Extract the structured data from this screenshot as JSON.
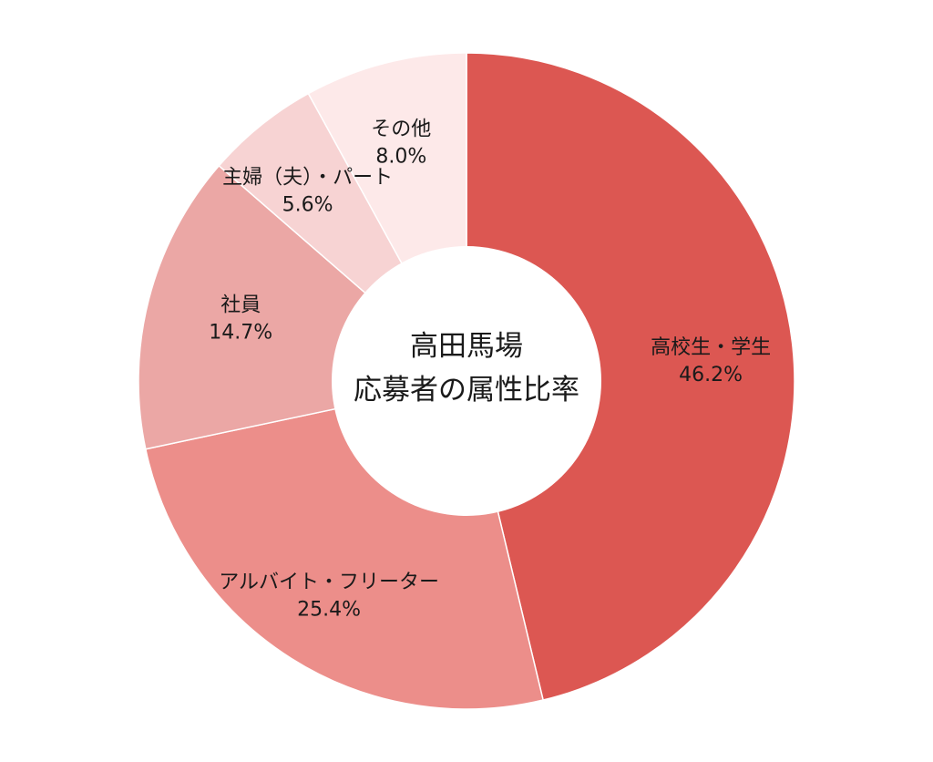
{
  "chart_data": {
    "type": "pie",
    "center_title": [
      "高田馬場",
      "応募者の属性比率"
    ],
    "slices": [
      {
        "label": "高校生・学生",
        "value": 46.2,
        "value_label": "46.2%",
        "color": "#dc5752"
      },
      {
        "label": "アルバイト・フリーター",
        "value": 25.4,
        "value_label": "25.4%",
        "color": "#ec8e8a"
      },
      {
        "label": "社員",
        "value": 14.7,
        "value_label": "14.7%",
        "color": "#eba7a5"
      },
      {
        "label": "主婦（夫）・パート",
        "value": 5.6,
        "value_label": "5.6%",
        "color": "#f7d3d3"
      },
      {
        "label": "その他",
        "value": 8.0,
        "value_label": "8.0%",
        "color": "#fde9e9"
      }
    ]
  }
}
